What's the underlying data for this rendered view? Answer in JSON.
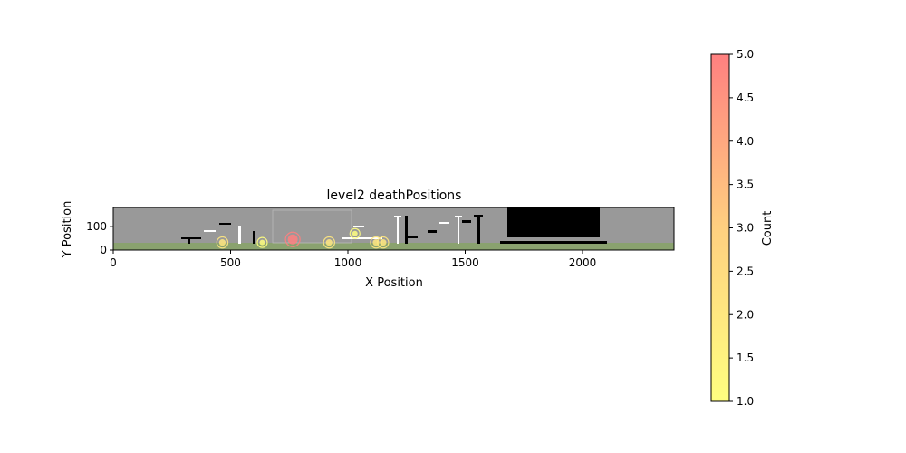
{
  "chart_data": {
    "type": "scatter",
    "title": "level2 deathPositions",
    "xlabel": "X Position",
    "ylabel": "Y Position",
    "xlim": [
      0,
      2390
    ],
    "ylim": [
      0,
      180
    ],
    "xticks": [
      0,
      500,
      1000,
      1500,
      2000
    ],
    "yticks": [
      0,
      100
    ],
    "grid": false,
    "background": "level map image",
    "points": [
      {
        "x": 465,
        "y": 32,
        "count": 2
      },
      {
        "x": 635,
        "y": 32,
        "count": 1
      },
      {
        "x": 765,
        "y": 45,
        "count": 5
      },
      {
        "x": 920,
        "y": 32,
        "count": 2
      },
      {
        "x": 1030,
        "y": 70,
        "count": 1
      },
      {
        "x": 1120,
        "y": 32,
        "count": 2
      },
      {
        "x": 1150,
        "y": 32,
        "count": 2
      }
    ],
    "colorbar": {
      "label": "Count",
      "range": [
        1.0,
        5.0
      ],
      "ticks": [
        "1.0",
        "1.5",
        "2.0",
        "2.5",
        "3.0",
        "3.5",
        "4.0",
        "4.5",
        "5.0"
      ],
      "colormap": [
        "#ffff80",
        "#ffd080",
        "#ff8080"
      ]
    }
  },
  "colors": {
    "map_sky": "#999999",
    "map_ground": "#8aa26f",
    "platform": "#000000",
    "highlight": "#ffffff"
  }
}
